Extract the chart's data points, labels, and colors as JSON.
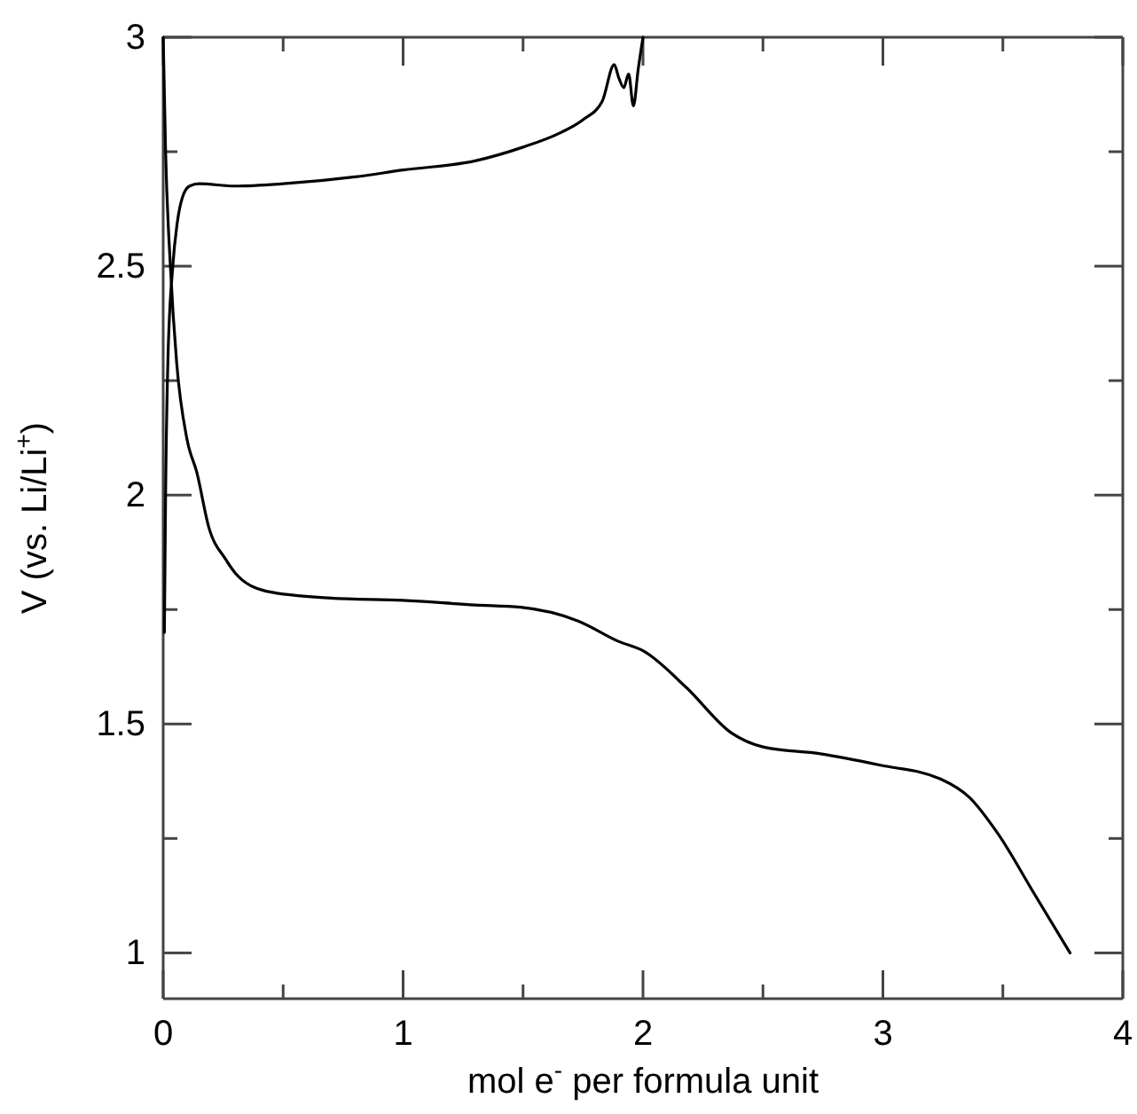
{
  "chart_data": {
    "type": "line",
    "xlabel": "mol e$^{-}$ per formula unit",
    "ylabel": "V (vs. Li/Li$^{+}$)",
    "xlim": [
      0,
      4
    ],
    "ylim": [
      0.9,
      3
    ],
    "xticks": [
      0,
      {
        "value": 0.5,
        "label": null
      },
      1,
      {
        "value": 1.5,
        "label": null
      },
      2,
      {
        "value": 2.5,
        "label": null
      },
      3,
      {
        "value": 3.5,
        "label": null
      },
      4
    ],
    "yticks": [
      1,
      {
        "value": 1.25,
        "label": null
      },
      1.5,
      {
        "value": 1.75,
        "label": null
      },
      2,
      {
        "value": 2.25,
        "label": null
      },
      2.5,
      {
        "value": 2.75,
        "label": null
      },
      3
    ],
    "grid": false,
    "marker": "none",
    "line_style": "solid",
    "series": [
      {
        "color": "#000000",
        "x": [
          0.005,
          0.01,
          0.02,
          0.04,
          0.06,
          0.08,
          0.11,
          0.15,
          0.3,
          0.5,
          0.8,
          1.0,
          1.3,
          1.5,
          1.65,
          1.75,
          1.83,
          1.88,
          1.9,
          1.92,
          1.94,
          1.96,
          1.98,
          2.0
        ],
        "values": [
          1.7,
          2.0,
          2.3,
          2.5,
          2.6,
          2.65,
          2.675,
          2.68,
          2.675,
          2.68,
          2.695,
          2.71,
          2.73,
          2.76,
          2.79,
          2.82,
          2.86,
          2.94,
          2.91,
          2.89,
          2.92,
          2.85,
          2.93,
          3.0
        ]
      },
      {
        "color": "#000000",
        "x": [
          0,
          0.01,
          0.03,
          0.056,
          0.1,
          0.14,
          0.19,
          0.26,
          0.3,
          0.43,
          0.7,
          1.0,
          1.3,
          1.49,
          1.73,
          1.9,
          2.0,
          2.18,
          2.37,
          2.5,
          2.74,
          2.99,
          3.24,
          3.36,
          3.48,
          3.63,
          3.78
        ],
        "values": [
          3.0,
          2.75,
          2.5,
          2.29,
          2.12,
          2.05,
          1.93,
          1.86,
          1.83,
          1.79,
          1.775,
          1.77,
          1.76,
          1.755,
          1.725,
          1.68,
          1.66,
          1.58,
          1.48,
          1.45,
          1.435,
          1.41,
          1.38,
          1.34,
          1.26,
          1.13,
          1.0
        ]
      }
    ]
  }
}
